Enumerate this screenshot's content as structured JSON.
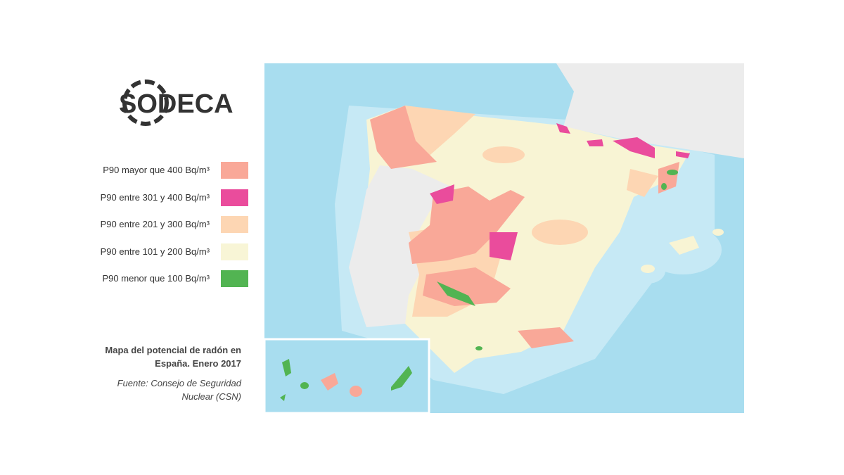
{
  "logo": {
    "text": "SODECA"
  },
  "legend": {
    "items": [
      {
        "label": "P90 mayor que 400 Bq/m³",
        "color": "#f9a898"
      },
      {
        "label": "P90 entre 301 y 400 Bq/m³",
        "color": "#ea4c9c"
      },
      {
        "label": "P90 entre 201 y 300 Bq/m³",
        "color": "#fdd6b3"
      },
      {
        "label": "P90 entre 101 y 200 Bq/m³",
        "color": "#f8f5d6"
      },
      {
        "label": "P90 menor que 100 Bq/m³",
        "color": "#52b452"
      }
    ]
  },
  "caption": {
    "title": "Mapa del potencial de radón en España. Enero 2017",
    "source": "Fuente: Consejo de Seguridad Nuclear (CSN)"
  }
}
